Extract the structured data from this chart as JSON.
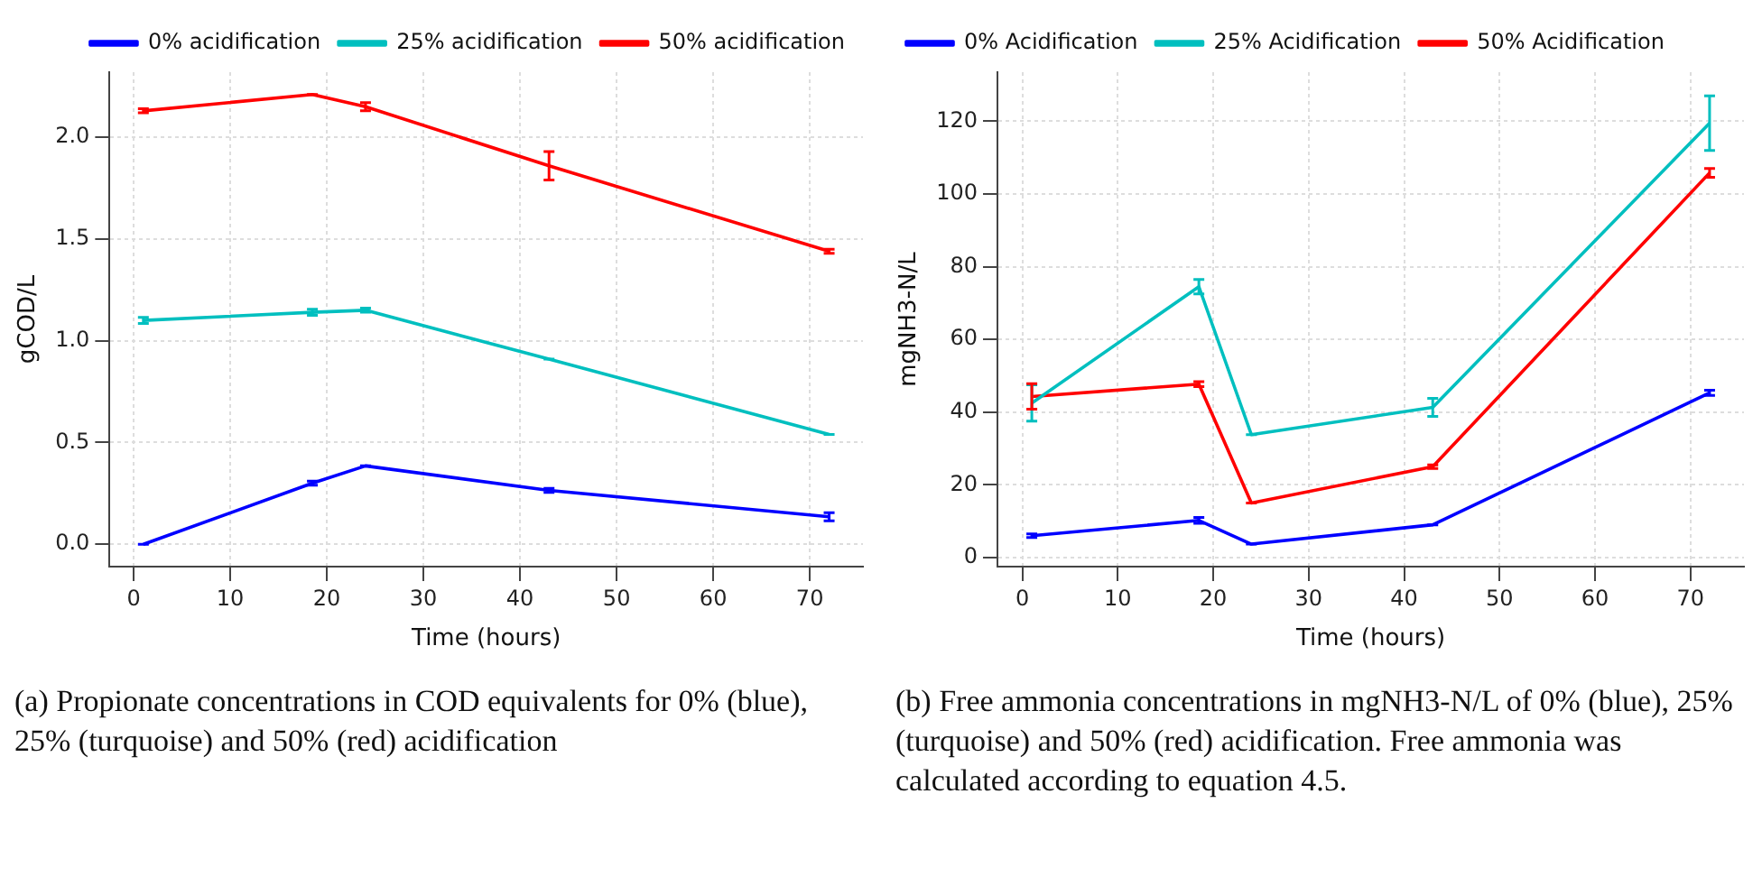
{
  "chart_data": [
    {
      "type": "line",
      "xlabel": "Time (hours)",
      "ylabel": "gCOD/L",
      "x": [
        1,
        18.5,
        24,
        43,
        72
      ],
      "series": [
        {
          "name": "0% acidification",
          "color": "#0000ff",
          "values": [
            0,
            0.3,
            0.385,
            0.265,
            0.135
          ],
          "errors": [
            0,
            0.01,
            0,
            0.01,
            0.02
          ]
        },
        {
          "name": "25% acidification",
          "color": "#00bfbf",
          "values": [
            1.1,
            1.14,
            1.15,
            0.91,
            0.54
          ],
          "errors": [
            0.015,
            0.015,
            0.01,
            0,
            0
          ]
        },
        {
          "name": "50% acidification",
          "color": "#ff0000",
          "values": [
            2.13,
            2.21,
            2.15,
            1.86,
            1.44
          ],
          "errors": [
            0.01,
            0,
            0.02,
            0.07,
            0.01
          ]
        }
      ],
      "xlim": [
        -2.5,
        75.5
      ],
      "ylim": [
        -0.11,
        2.32
      ],
      "xticks": [
        0,
        10,
        20,
        30,
        40,
        50,
        60,
        70
      ],
      "yticks": [
        {
          "value": 0,
          "label": "0.0"
        },
        {
          "value": 0.5,
          "label": "0.5"
        },
        {
          "value": 1,
          "label": "1.0"
        },
        {
          "value": 1.5,
          "label": "1.5"
        },
        {
          "value": 2,
          "label": "2.0"
        }
      ],
      "grid": true,
      "legend": "top right",
      "marker": "none",
      "line_style": "solid",
      "annotations": [
        "(a) Propionate concentrations in COD equivalents for 0% (blue), 25% (turquoise) and 50% (red) acidification"
      ]
    },
    {
      "type": "line",
      "xlabel": "Time (hours)",
      "ylabel": "mgNH3-N/L",
      "x": [
        1,
        18.5,
        24,
        43,
        72
      ],
      "series": [
        {
          "name": "0% Acidification",
          "color": "#0000ff",
          "values": [
            6,
            10.2,
            3.7,
            9,
            45.3
          ],
          "errors": [
            0.5,
            0.8,
            0,
            0,
            0.7
          ]
        },
        {
          "name": "25% Acidification",
          "color": "#00bfbf",
          "values": [
            42.5,
            74.5,
            33.8,
            41.3,
            119.5
          ],
          "errors": [
            5,
            2,
            0,
            2.5,
            7.5
          ]
        },
        {
          "name": "50% Acidification",
          "color": "#ff0000",
          "values": [
            44.3,
            47.7,
            15,
            25,
            105.8
          ],
          "errors": [
            3.5,
            0.7,
            0,
            0.5,
            1.2
          ]
        }
      ],
      "xlim": [
        -2.6,
        75.6
      ],
      "ylim": [
        -2.5,
        133.5
      ],
      "xticks": [
        0,
        10,
        20,
        30,
        40,
        50,
        60,
        70
      ],
      "yticks": [
        0,
        20,
        40,
        60,
        80,
        100,
        120
      ],
      "grid": true,
      "legend": "top left",
      "marker": "none",
      "line_style": "solid",
      "annotations": [
        "(b) Free ammonia concentrations in mgNH3-N/L of 0% (blue), 25% (turquoise) and 50% (red) acidification. Free ammonia was calculated according to equation 4.5."
      ]
    }
  ]
}
